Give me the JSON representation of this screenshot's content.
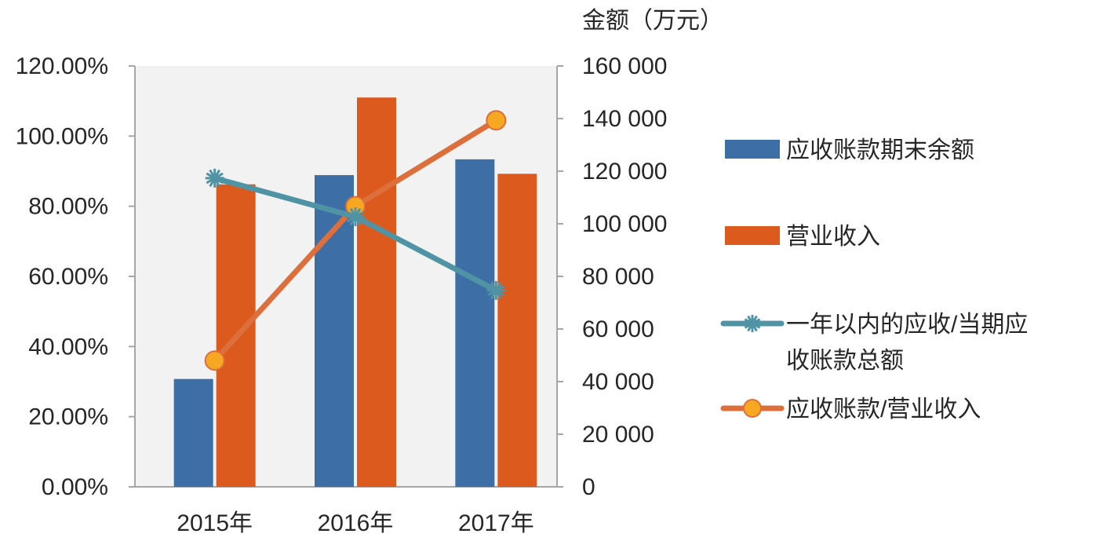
{
  "chart_data": {
    "type": "bar",
    "categories": [
      "2015年",
      "2016年",
      "2017年"
    ],
    "series": [
      {
        "name": "应收账款期末余额",
        "kind": "bar",
        "axis": "right",
        "color": "#3D6EA6",
        "values": [
          41000,
          118500,
          124500
        ]
      },
      {
        "name": "营业收入",
        "kind": "bar",
        "axis": "right",
        "color": "#DC5A1E",
        "values": [
          115000,
          148000,
          119000
        ]
      },
      {
        "name": "一年以内的应收/当期应收账款总额",
        "kind": "line",
        "axis": "left",
        "marker": "star",
        "color": "#4F93A5",
        "values": [
          0.88,
          0.77,
          0.56
        ]
      },
      {
        "name": "应收账款/营业收入",
        "kind": "line",
        "axis": "left",
        "marker": "circle",
        "color": "#DC6F3C",
        "values": [
          0.36,
          0.8,
          1.045
        ]
      }
    ],
    "left_axis": {
      "ylim": [
        0,
        1.2
      ],
      "ticks": [
        "0.00%",
        "20.00%",
        "40.00%",
        "60.00%",
        "80.00%",
        "100.00%",
        "120.00%"
      ]
    },
    "right_axis": {
      "label": "金额（万元）",
      "ylim": [
        0,
        160000
      ],
      "ticks": [
        "0",
        "20 000",
        "40 000",
        "60 000",
        "80 000",
        "100 000",
        "120 000",
        "140 000",
        "160 000"
      ]
    },
    "legend": {
      "position": "right",
      "items": [
        {
          "lines": [
            "应收账款期末余额"
          ]
        },
        {
          "lines": [
            "营业收入"
          ]
        },
        {
          "lines": [
            "一年以内的应收/当期应",
            "收账款总额"
          ]
        },
        {
          "lines": [
            "应收账款/营业收入"
          ]
        }
      ]
    },
    "grid": false
  }
}
